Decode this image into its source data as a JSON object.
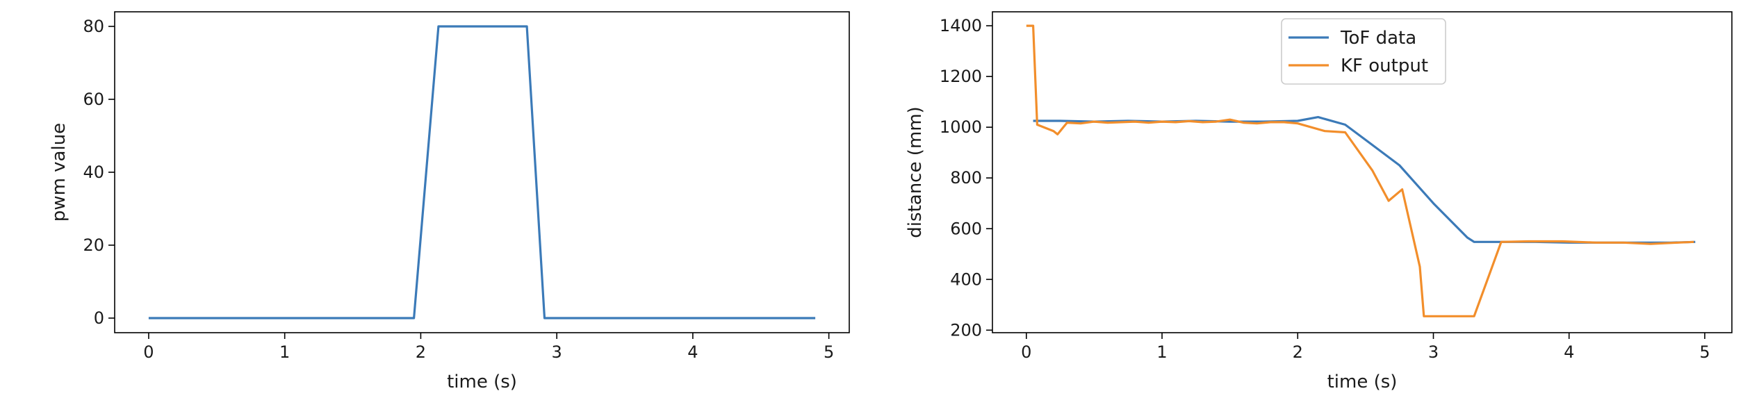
{
  "chart_data": [
    {
      "type": "line",
      "xlabel": "time (s)",
      "ylabel": "pwm value",
      "xlim": [
        -0.25,
        5.15
      ],
      "ylim": [
        -4,
        84
      ],
      "xticks": [
        0,
        1,
        2,
        3,
        4,
        5
      ],
      "yticks": [
        0,
        20,
        40,
        60,
        80
      ],
      "grid": false,
      "series": [
        {
          "color": "#3b7ab8",
          "x": [
            0,
            1.95,
            2.13,
            2.78,
            2.91,
            4.9
          ],
          "y": [
            0,
            0,
            80,
            80,
            0,
            0
          ]
        }
      ]
    },
    {
      "type": "line",
      "xlabel": "time (s)",
      "ylabel": "distance (mm)",
      "xlim": [
        -0.25,
        5.2
      ],
      "ylim": [
        190,
        1455
      ],
      "xticks": [
        0,
        1,
        2,
        3,
        4,
        5
      ],
      "yticks": [
        200,
        400,
        600,
        800,
        1000,
        1200,
        1400
      ],
      "grid": false,
      "legend": "top-center",
      "series": [
        {
          "name": "ToF data",
          "color": "#3b7ab8",
          "x": [
            0.05,
            0.25,
            0.5,
            0.75,
            1.0,
            1.25,
            1.5,
            1.75,
            2.0,
            2.15,
            2.35,
            2.5,
            2.75,
            3.0,
            3.25,
            3.3,
            3.5,
            3.75,
            4.0,
            4.25,
            4.5,
            4.75,
            4.93
          ],
          "y": [
            1025,
            1025,
            1022,
            1025,
            1022,
            1025,
            1022,
            1022,
            1025,
            1040,
            1010,
            950,
            850,
            700,
            565,
            548,
            548,
            548,
            545,
            545,
            545,
            545,
            548
          ]
        },
        {
          "name": "KF output",
          "color": "#f28e2b",
          "x": [
            0.0,
            0.05,
            0.08,
            0.2,
            0.23,
            0.3,
            0.4,
            0.5,
            0.6,
            0.7,
            0.8,
            0.9,
            1.0,
            1.1,
            1.2,
            1.3,
            1.4,
            1.5,
            1.6,
            1.7,
            1.8,
            1.9,
            2.0,
            2.2,
            2.35,
            2.55,
            2.67,
            2.77,
            2.9,
            2.93,
            3.3,
            3.5,
            3.7,
            3.95,
            4.2,
            4.4,
            4.6,
            4.8,
            4.92
          ],
          "y": [
            1400,
            1400,
            1010,
            985,
            972,
            1018,
            1015,
            1022,
            1018,
            1020,
            1022,
            1018,
            1022,
            1020,
            1024,
            1020,
            1022,
            1030,
            1018,
            1015,
            1020,
            1020,
            1015,
            985,
            980,
            830,
            710,
            755,
            450,
            255,
            255,
            548,
            550,
            550,
            545,
            545,
            540,
            545,
            548
          ]
        }
      ]
    }
  ]
}
